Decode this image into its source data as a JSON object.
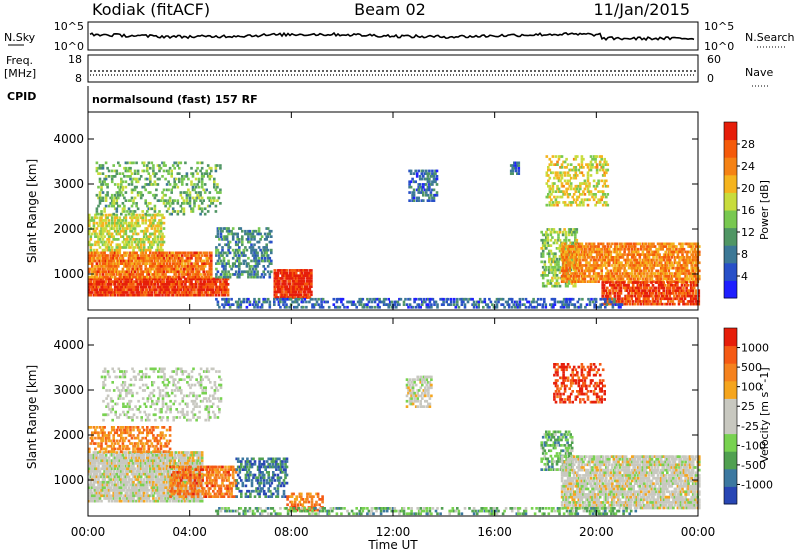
{
  "header": {
    "station": "Kodiak (fitACF)",
    "beam": "Beam 02",
    "date": "11/Jan/2015"
  },
  "strips": {
    "nsky": {
      "label": "N.Sky",
      "ticks": [
        "10^5",
        "10^0"
      ],
      "right_label": "N.Search",
      "right_ticks": [
        "10^5",
        "10^0"
      ]
    },
    "freq": {
      "label_1": "Freq.",
      "label_2": "[MHz]",
      "ticks": [
        "18",
        "8"
      ],
      "right_label": "Nave",
      "right_ticks": [
        "60",
        "0"
      ]
    },
    "cpid": {
      "label": "CPID",
      "value": "normalsound (fast) 157 RF"
    }
  },
  "chart_data": [
    {
      "type": "heatmap",
      "panel": "power",
      "ylabel": "Slant Range [km]",
      "yticks": [
        1000,
        2000,
        3000,
        4000
      ],
      "ylim": [
        200,
        4600
      ],
      "xlim": [
        0,
        24
      ],
      "colorbar": {
        "label": "Power [dB]",
        "ticks": [
          "4",
          "8",
          "12",
          "16",
          "20",
          "24",
          "28"
        ],
        "colors": [
          "#1e1eff",
          "#2850c8",
          "#3c7896",
          "#509664",
          "#78c850",
          "#c8dc3c",
          "#f5b41e",
          "#f58214",
          "#f55a0a",
          "#e61e0a"
        ]
      },
      "regions": [
        {
          "t": [
            0.0,
            5.5
          ],
          "r": [
            500,
            900
          ],
          "v": 0.92,
          "d": 0.85
        },
        {
          "t": [
            0.0,
            4.8
          ],
          "r": [
            900,
            1500
          ],
          "v": 0.78,
          "d": 0.8
        },
        {
          "t": [
            0.0,
            3.0
          ],
          "r": [
            1500,
            2300
          ],
          "v": 0.55,
          "d": 0.55
        },
        {
          "t": [
            0.3,
            5.2
          ],
          "r": [
            2300,
            3500
          ],
          "v": 0.42,
          "d": 0.28
        },
        {
          "t": [
            5.0,
            7.2
          ],
          "r": [
            900,
            2000
          ],
          "v": 0.3,
          "d": 0.38
        },
        {
          "t": [
            7.3,
            8.8
          ],
          "r": [
            450,
            1100
          ],
          "v": 0.95,
          "d": 0.85
        },
        {
          "t": [
            12.6,
            13.7
          ],
          "r": [
            2600,
            3300
          ],
          "v": 0.22,
          "d": 0.55
        },
        {
          "t": [
            16.6,
            16.9
          ],
          "r": [
            3200,
            3500
          ],
          "v": 0.2,
          "d": 0.7
        },
        {
          "t": [
            17.8,
            19.2
          ],
          "r": [
            700,
            2000
          ],
          "v": 0.48,
          "d": 0.5
        },
        {
          "t": [
            18.0,
            20.4
          ],
          "r": [
            2500,
            3600
          ],
          "v": 0.58,
          "d": 0.38
        },
        {
          "t": [
            18.6,
            24.0
          ],
          "r": [
            800,
            1700
          ],
          "v": 0.75,
          "d": 0.72
        },
        {
          "t": [
            20.2,
            24.0
          ],
          "r": [
            300,
            800
          ],
          "v": 0.9,
          "d": 0.7
        },
        {
          "t": [
            5.0,
            21.0
          ],
          "r": [
            230,
            420
          ],
          "v": 0.2,
          "d": 0.42
        }
      ]
    },
    {
      "type": "heatmap",
      "panel": "velocity",
      "ylabel": "Slant Range [km]",
      "yticks": [
        1000,
        2000,
        3000,
        4000
      ],
      "ylim": [
        200,
        4600
      ],
      "xlim": [
        0,
        24
      ],
      "xlabel": "Time UT",
      "xticks": [
        "00:00",
        "04:00",
        "08:00",
        "12:00",
        "16:00",
        "20:00",
        "00:00"
      ],
      "colorbar": {
        "label": "Velocity [m s^-1]",
        "ticks": [
          "1000",
          "500",
          "100",
          "25",
          "-25",
          "-100",
          "-500",
          "-1000"
        ],
        "colors": [
          "#2846b4",
          "#3c78a0",
          "#50a050",
          "#78d250",
          "#c8c8c0",
          "#c8c8c0",
          "#f5a51e",
          "#f5821e",
          "#f55a14",
          "#e61e0a"
        ]
      },
      "regions": [
        {
          "t": [
            0.0,
            4.5
          ],
          "r": [
            500,
            1600
          ],
          "v": 0.5,
          "d": 0.82
        },
        {
          "t": [
            0.0,
            3.2
          ],
          "r": [
            1600,
            2200
          ],
          "v": 0.75,
          "d": 0.45
        },
        {
          "t": [
            0.5,
            5.2
          ],
          "r": [
            2300,
            3500
          ],
          "v": 0.45,
          "d": 0.25
        },
        {
          "t": [
            3.2,
            5.8
          ],
          "r": [
            600,
            1300
          ],
          "v": 0.78,
          "d": 0.55
        },
        {
          "t": [
            5.8,
            7.8
          ],
          "r": [
            600,
            1500
          ],
          "v": 0.15,
          "d": 0.45
        },
        {
          "t": [
            7.8,
            9.2
          ],
          "r": [
            300,
            700
          ],
          "v": 0.78,
          "d": 0.5
        },
        {
          "t": [
            12.5,
            13.5
          ],
          "r": [
            2600,
            3300
          ],
          "v": 0.5,
          "d": 0.5
        },
        {
          "t": [
            17.8,
            19.0
          ],
          "r": [
            1200,
            2100
          ],
          "v": 0.3,
          "d": 0.5
        },
        {
          "t": [
            18.3,
            20.3
          ],
          "r": [
            2700,
            3600
          ],
          "v": 0.92,
          "d": 0.4
        },
        {
          "t": [
            18.6,
            24.0
          ],
          "r": [
            350,
            1500
          ],
          "v": 0.5,
          "d": 0.78
        },
        {
          "t": [
            5.0,
            21.5
          ],
          "r": [
            220,
            400
          ],
          "v": 0.3,
          "d": 0.35
        }
      ]
    }
  ]
}
